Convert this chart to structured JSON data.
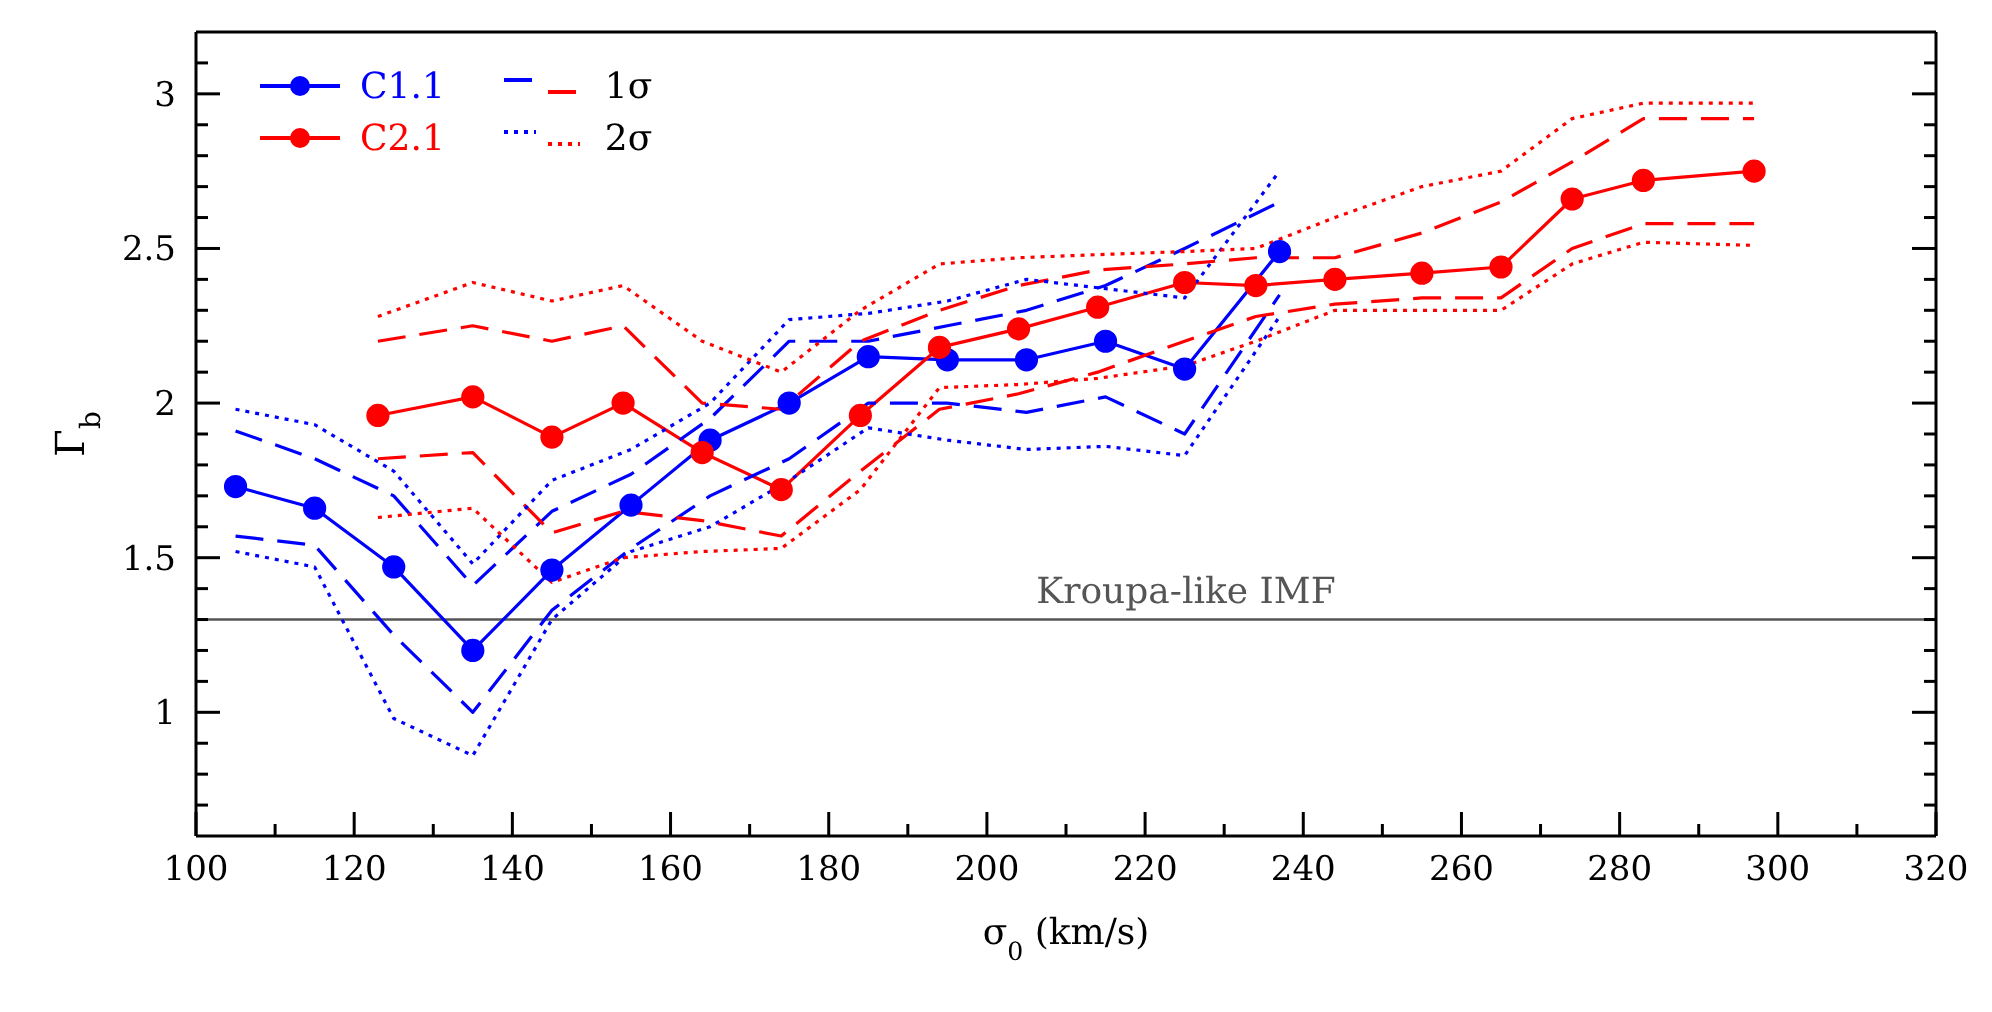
{
  "chart_data": {
    "type": "line",
    "xlabel": "σ$_{0}$ (km/s)",
    "ylabel": "Γ$_{b}$",
    "xlim": [
      100,
      320
    ],
    "xticks": [
      100,
      {
        "value": 110,
        "label": null
      },
      120,
      {
        "value": 130,
        "label": null
      },
      140,
      {
        "value": 150,
        "label": null
      },
      160,
      {
        "value": 170,
        "label": null
      },
      180,
      {
        "value": 190,
        "label": null
      },
      200,
      {
        "value": 210,
        "label": null
      },
      220,
      {
        "value": 230,
        "label": null
      },
      240,
      {
        "value": 250,
        "label": null
      },
      260,
      {
        "value": 270,
        "label": null
      },
      280,
      {
        "value": 290,
        "label": null
      },
      300,
      {
        "value": 310,
        "label": null
      },
      320
    ],
    "ylim": [
      0.6,
      3.2
    ],
    "yticks": [
      {
        "value": 0.7,
        "label": null
      },
      {
        "value": 0.8,
        "label": null
      },
      {
        "value": 0.9,
        "label": null
      },
      1,
      {
        "value": 1.1,
        "label": null
      },
      {
        "value": 1.2,
        "label": null
      },
      {
        "value": 1.3,
        "label": null
      },
      {
        "value": 1.4,
        "label": null
      },
      1.5,
      {
        "value": 1.6,
        "label": null
      },
      {
        "value": 1.7,
        "label": null
      },
      {
        "value": 1.8,
        "label": null
      },
      {
        "value": 1.9,
        "label": null
      },
      2,
      {
        "value": 2.1,
        "label": null
      },
      {
        "value": 2.2,
        "label": null
      },
      {
        "value": 2.3,
        "label": null
      },
      {
        "value": 2.4,
        "label": null
      },
      2.5,
      {
        "value": 2.6,
        "label": null
      },
      {
        "value": 2.7,
        "label": null
      },
      {
        "value": 2.8,
        "label": null
      },
      {
        "value": 2.9,
        "label": null
      },
      3,
      {
        "value": 3.1,
        "label": null
      }
    ],
    "grid": false,
    "legend": "top left",
    "ref_lines": [
      {
        "axis": "y",
        "value": 1.3,
        "label": "Kroupa-like IMF",
        "color": "#555555"
      }
    ],
    "series": [
      {
        "name": "C1.1",
        "color": "#0000ff",
        "marker": "circle",
        "line_style": "solid",
        "x": [
          105,
          115,
          125,
          135,
          145,
          155,
          165,
          175,
          185,
          195,
          205,
          215,
          225,
          237
        ],
        "values": [
          1.73,
          1.66,
          1.47,
          1.2,
          1.46,
          1.67,
          1.88,
          2.0,
          2.15,
          2.14,
          2.14,
          2.2,
          2.11,
          2.49
        ]
      },
      {
        "name": "C2.1",
        "color": "#ff0000",
        "marker": "circle",
        "line_style": "solid",
        "x": [
          123,
          135,
          145,
          154,
          164,
          174,
          184,
          194,
          204,
          214,
          225,
          234,
          244,
          255,
          265,
          274,
          283,
          297
        ],
        "values": [
          1.96,
          2.02,
          1.89,
          2.0,
          1.84,
          1.72,
          1.96,
          2.18,
          2.24,
          2.31,
          2.39,
          2.38,
          2.4,
          2.42,
          2.44,
          2.66,
          2.72,
          2.75
        ]
      },
      {
        "color": "#0000ff",
        "marker": "none",
        "line_style": "dashed",
        "x": [
          105,
          115,
          125,
          135,
          145,
          155,
          165,
          175,
          185,
          195,
          205,
          215,
          225,
          237
        ],
        "values": [
          1.91,
          1.82,
          1.7,
          1.41,
          1.65,
          1.77,
          1.95,
          2.2,
          2.2,
          2.25,
          2.3,
          2.38,
          2.5,
          2.65
        ]
      },
      {
        "color": "#0000ff",
        "marker": "none",
        "line_style": "dashed",
        "x": [
          105,
          115,
          125,
          135,
          145,
          155,
          165,
          175,
          185,
          195,
          205,
          215,
          225,
          237
        ],
        "values": [
          1.57,
          1.54,
          1.25,
          1.0,
          1.33,
          1.53,
          1.7,
          1.82,
          2.0,
          2.0,
          1.97,
          2.02,
          1.9,
          2.35
        ]
      },
      {
        "name": "1σ",
        "color": "#ff0000",
        "marker": "none",
        "line_style": "dashed",
        "x": [
          123,
          135,
          145,
          154,
          164,
          174,
          184,
          194,
          204,
          214,
          225,
          234,
          244,
          255,
          265,
          274,
          283,
          297
        ],
        "values": [
          2.2,
          2.25,
          2.2,
          2.25,
          2.0,
          1.98,
          2.2,
          2.3,
          2.38,
          2.43,
          2.45,
          2.47,
          2.47,
          2.55,
          2.65,
          2.78,
          2.92,
          2.92
        ]
      },
      {
        "color": "#ff0000",
        "marker": "none",
        "line_style": "dashed",
        "x": [
          123,
          135,
          145,
          154,
          164,
          174,
          184,
          194,
          204,
          214,
          225,
          234,
          244,
          255,
          265,
          274,
          283,
          297
        ],
        "values": [
          1.82,
          1.84,
          1.58,
          1.65,
          1.62,
          1.57,
          1.78,
          1.98,
          2.03,
          2.1,
          2.2,
          2.28,
          2.32,
          2.34,
          2.34,
          2.5,
          2.58,
          2.58
        ]
      },
      {
        "color": "#0000ff",
        "marker": "none",
        "line_style": "dotted",
        "x": [
          105,
          115,
          125,
          135,
          145,
          155,
          165,
          175,
          185,
          195,
          205,
          215,
          225,
          237
        ],
        "values": [
          1.98,
          1.93,
          1.78,
          1.48,
          1.75,
          1.85,
          2.0,
          2.27,
          2.29,
          2.33,
          2.4,
          2.37,
          2.34,
          2.75
        ]
      },
      {
        "color": "#0000ff",
        "marker": "none",
        "line_style": "dotted",
        "x": [
          105,
          115,
          125,
          135,
          145,
          155,
          165,
          175,
          185,
          195,
          205,
          215,
          225,
          237
        ],
        "values": [
          1.52,
          1.47,
          0.98,
          0.86,
          1.3,
          1.52,
          1.6,
          1.75,
          1.92,
          1.88,
          1.85,
          1.86,
          1.83,
          2.28
        ]
      },
      {
        "name": "2σ",
        "color": "#ff0000",
        "marker": "none",
        "line_style": "dotted",
        "x": [
          123,
          135,
          145,
          154,
          164,
          174,
          184,
          194,
          204,
          214,
          225,
          234,
          244,
          255,
          265,
          274,
          283,
          297
        ],
        "values": [
          2.28,
          2.39,
          2.33,
          2.38,
          2.2,
          2.1,
          2.3,
          2.45,
          2.47,
          2.48,
          2.49,
          2.5,
          2.6,
          2.7,
          2.75,
          2.92,
          2.97,
          2.97
        ]
      },
      {
        "color": "#ff0000",
        "marker": "none",
        "line_style": "dotted",
        "x": [
          123,
          135,
          145,
          154,
          164,
          174,
          184,
          194,
          204,
          214,
          225,
          234,
          244,
          255,
          265,
          274,
          283,
          297
        ],
        "values": [
          1.63,
          1.66,
          1.42,
          1.5,
          1.52,
          1.53,
          1.72,
          2.05,
          2.06,
          2.08,
          2.12,
          2.2,
          2.3,
          2.3,
          2.3,
          2.45,
          2.52,
          2.51
        ]
      }
    ]
  }
}
